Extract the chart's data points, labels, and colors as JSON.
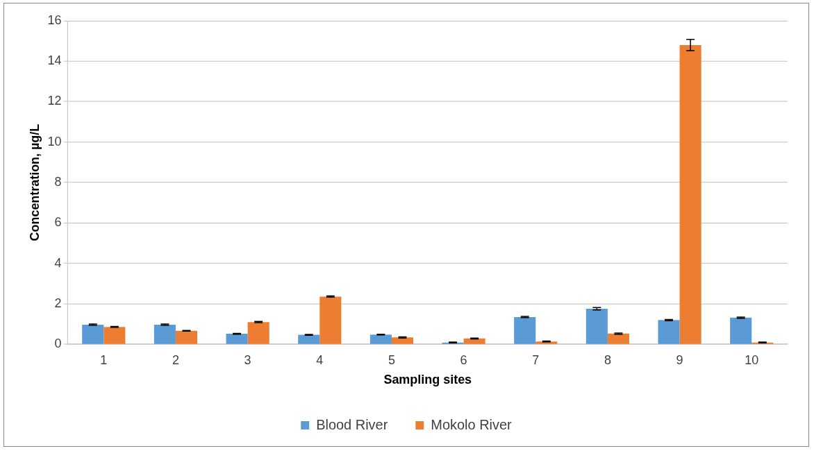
{
  "chart_data": {
    "type": "bar",
    "xlabel": "Sampling sites",
    "ylabel": "Concentration, µg/L",
    "categories": [
      "1",
      "2",
      "3",
      "4",
      "5",
      "6",
      "7",
      "8",
      "9",
      "10"
    ],
    "series": [
      {
        "name": "Blood River",
        "color": "#5b9bd5",
        "values": [
          0.97,
          0.97,
          0.52,
          0.47,
          0.48,
          0.09,
          1.35,
          1.76,
          1.2,
          1.32
        ],
        "errors": [
          0.03,
          0.03,
          0.02,
          0.02,
          0.02,
          0.02,
          0.03,
          0.06,
          0.03,
          0.03
        ]
      },
      {
        "name": "Mokolo River",
        "color": "#ed7d31",
        "values": [
          0.86,
          0.67,
          1.1,
          2.36,
          0.34,
          0.29,
          0.14,
          0.53,
          14.8,
          0.09
        ],
        "errors": [
          0.02,
          0.02,
          0.03,
          0.03,
          0.03,
          0.02,
          0.02,
          0.03,
          0.28,
          0.02
        ]
      }
    ],
    "ylim": [
      0,
      16
    ],
    "yticks": [
      0,
      2,
      4,
      6,
      8,
      10,
      12,
      14,
      16
    ],
    "grid": "y",
    "legend": "bottom"
  }
}
